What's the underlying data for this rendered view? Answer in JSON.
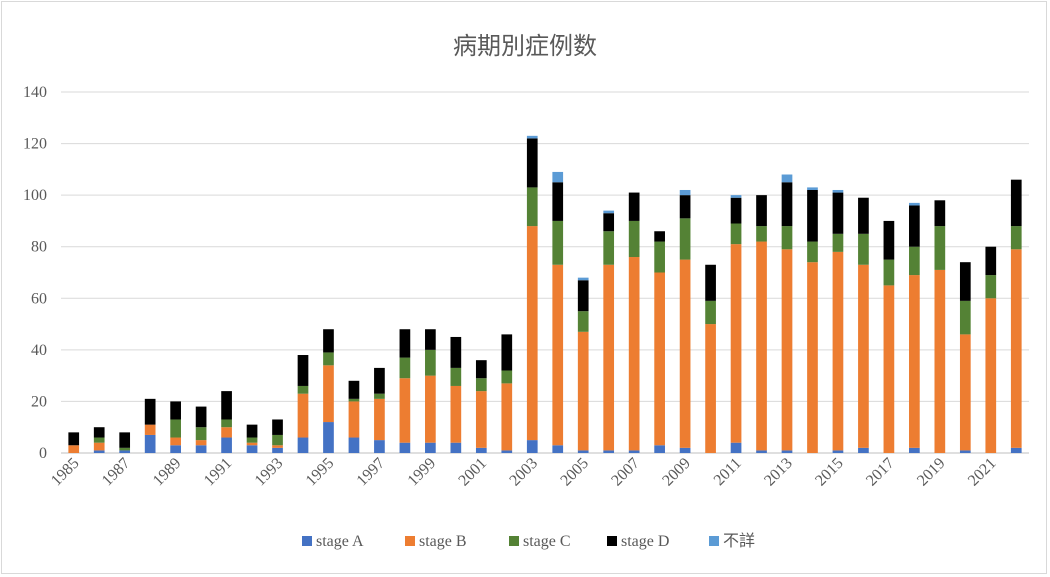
{
  "chart_data": {
    "type": "bar",
    "stacked": true,
    "title": "病期別症例数",
    "xlabel": "",
    "ylabel": "",
    "ylim": [
      0,
      140
    ],
    "yticks": [
      0,
      20,
      40,
      60,
      80,
      100,
      120,
      140
    ],
    "grid": true,
    "legend_position": "bottom",
    "categories": [
      1985,
      1986,
      1987,
      1988,
      1989,
      1990,
      1991,
      1992,
      1993,
      1994,
      1995,
      1996,
      1997,
      1998,
      1999,
      2000,
      2001,
      2002,
      2003,
      2004,
      2005,
      2006,
      2007,
      2008,
      2009,
      2010,
      2011,
      2012,
      2013,
      2014,
      2015,
      2016,
      2017,
      2018,
      2019,
      2020,
      2021,
      2022
    ],
    "xtick_labels": [
      "1985",
      "1987",
      "1989",
      "1991",
      "1993",
      "1995",
      "1997",
      "1999",
      "2001",
      "2003",
      "2005",
      "2007",
      "2009",
      "2011",
      "2013",
      "2015",
      "2017",
      "2019",
      "2021"
    ],
    "series": [
      {
        "name": "stage A",
        "color": "#4472c4",
        "values": [
          0,
          1,
          1,
          7,
          3,
          3,
          6,
          3,
          2,
          6,
          12,
          6,
          5,
          4,
          4,
          4,
          2,
          1,
          5,
          3,
          1,
          1,
          1,
          3,
          2,
          0,
          4,
          1,
          1,
          0,
          1,
          2,
          0,
          2,
          0,
          1,
          0,
          2
        ]
      },
      {
        "name": "stage B",
        "color": "#ed7d31",
        "values": [
          3,
          3,
          0,
          4,
          3,
          2,
          4,
          1,
          1,
          17,
          22,
          14,
          16,
          25,
          26,
          22,
          22,
          26,
          83,
          70,
          46,
          72,
          75,
          67,
          73,
          50,
          77,
          81,
          78,
          74,
          77,
          71,
          65,
          67,
          71,
          45,
          60,
          77
        ]
      },
      {
        "name": "stage C",
        "color": "#548235",
        "values": [
          0,
          2,
          1,
          0,
          7,
          5,
          3,
          2,
          4,
          3,
          5,
          1,
          2,
          8,
          10,
          7,
          5,
          5,
          15,
          17,
          8,
          13,
          14,
          12,
          16,
          9,
          8,
          6,
          9,
          8,
          7,
          12,
          10,
          11,
          17,
          13,
          9,
          9
        ]
      },
      {
        "name": "stage D",
        "color": "#000000",
        "values": [
          5,
          4,
          6,
          10,
          7,
          8,
          11,
          5,
          6,
          12,
          9,
          7,
          10,
          11,
          8,
          12,
          7,
          14,
          19,
          15,
          12,
          7,
          11,
          4,
          9,
          14,
          10,
          12,
          17,
          20,
          16,
          14,
          15,
          16,
          10,
          15,
          11,
          18
        ]
      },
      {
        "name": "不詳",
        "color": "#5b9bd5",
        "values": [
          0,
          0,
          0,
          0,
          0,
          0,
          0,
          0,
          0,
          0,
          0,
          0,
          0,
          0,
          0,
          0,
          0,
          0,
          1,
          4,
          1,
          1,
          0,
          0,
          2,
          0,
          1,
          0,
          3,
          1,
          1,
          0,
          0,
          1,
          0,
          0,
          0,
          0
        ]
      }
    ]
  }
}
